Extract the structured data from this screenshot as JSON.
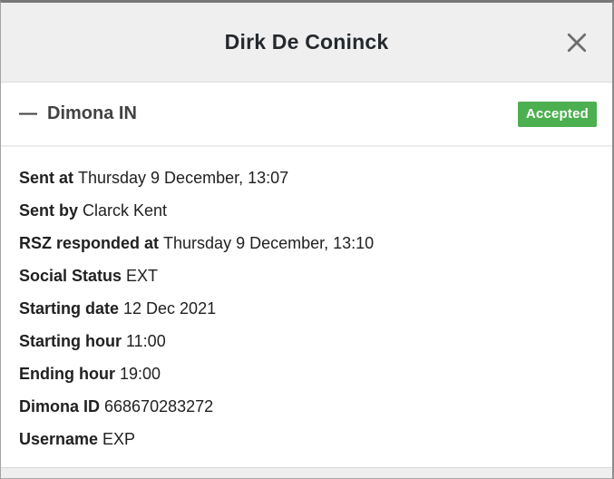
{
  "modal": {
    "title": "Dirk De Coninck"
  },
  "section": {
    "collapse_icon": "—",
    "title": "Dimona IN",
    "badge": "Accepted"
  },
  "details": [
    {
      "label": "Sent at",
      "value": "Thursday 9 December, 13:07"
    },
    {
      "label": "Sent by",
      "value": "Clarck Kent"
    },
    {
      "label": "RSZ responded at",
      "value": "Thursday 9 December, 13:10"
    },
    {
      "label": "Social Status",
      "value": "EXT"
    },
    {
      "label": "Starting date",
      "value": "12 Dec 2021"
    },
    {
      "label": "Starting hour",
      "value": "11:00"
    },
    {
      "label": "Ending hour",
      "value": "19:00"
    },
    {
      "label": "Dimona ID",
      "value": "668670283272"
    },
    {
      "label": "Username",
      "value": "EXP"
    }
  ],
  "colors": {
    "badge_green": "#4caf50",
    "header_bg": "#efefef",
    "text_dark": "#212121",
    "close_gray": "#6d6d6d"
  }
}
